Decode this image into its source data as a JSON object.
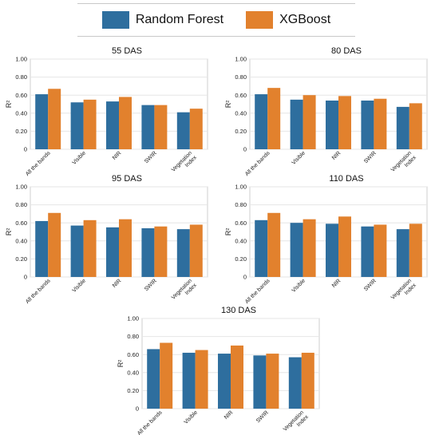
{
  "legend": {
    "items": [
      {
        "label": "Random Forest",
        "color": "#2e6e9e"
      },
      {
        "label": "XGBoost",
        "color": "#e2812d"
      }
    ]
  },
  "chart_data": [
    {
      "type": "bar",
      "title": "55 DAS",
      "ylabel": "R²",
      "ylim": [
        0,
        1.0
      ],
      "yticks": [
        "0",
        "0.20",
        "0.40",
        "0.60",
        "0.80",
        "1.00"
      ],
      "categories": [
        "All the bands",
        "Visible",
        "NIR",
        "SWIR",
        "Vegetation\nIndex"
      ],
      "series": [
        {
          "name": "Random Forest",
          "values": [
            0.61,
            0.52,
            0.53,
            0.49,
            0.41
          ]
        },
        {
          "name": "XGBoost",
          "values": [
            0.67,
            0.55,
            0.58,
            0.49,
            0.45
          ]
        }
      ]
    },
    {
      "type": "bar",
      "title": "80 DAS",
      "ylabel": "R²",
      "ylim": [
        0,
        1.0
      ],
      "yticks": [
        "0",
        "0.20",
        "0.40",
        "0.60",
        "0.80",
        "1.00"
      ],
      "categories": [
        "All the bands",
        "Visible",
        "NIR",
        "SWIR",
        "Vegetation\nIndex"
      ],
      "series": [
        {
          "name": "Random Forest",
          "values": [
            0.61,
            0.55,
            0.54,
            0.54,
            0.47
          ]
        },
        {
          "name": "XGBoost",
          "values": [
            0.68,
            0.6,
            0.59,
            0.56,
            0.51
          ]
        }
      ]
    },
    {
      "type": "bar",
      "title": "95 DAS",
      "ylabel": "R²",
      "ylim": [
        0,
        1.0
      ],
      "yticks": [
        "0",
        "0.20",
        "0.40",
        "0.60",
        "0.80",
        "1.00"
      ],
      "categories": [
        "All the bands",
        "Visible",
        "NIR",
        "SWIR",
        "Vegetation\nIndex"
      ],
      "series": [
        {
          "name": "Random Forest",
          "values": [
            0.62,
            0.57,
            0.55,
            0.54,
            0.53
          ]
        },
        {
          "name": "XGBoost",
          "values": [
            0.71,
            0.63,
            0.64,
            0.56,
            0.58
          ]
        }
      ]
    },
    {
      "type": "bar",
      "title": "110 DAS",
      "ylabel": "R²",
      "ylim": [
        0,
        1.0
      ],
      "yticks": [
        "0",
        "0.20",
        "0.40",
        "0.60",
        "0.80",
        "1.00"
      ],
      "categories": [
        "All the bands",
        "Visible",
        "NIR",
        "SWIR",
        "Vegetation\nIndex"
      ],
      "series": [
        {
          "name": "Random Forest",
          "values": [
            0.63,
            0.6,
            0.59,
            0.56,
            0.53
          ]
        },
        {
          "name": "XGBoost",
          "values": [
            0.71,
            0.64,
            0.67,
            0.58,
            0.59
          ]
        }
      ]
    },
    {
      "type": "bar",
      "title": "130 DAS",
      "ylabel": "R²",
      "ylim": [
        0,
        1.0
      ],
      "yticks": [
        "0",
        "0.20",
        "0.40",
        "0.60",
        "0.80",
        "1.00"
      ],
      "categories": [
        "All the bands",
        "Visible",
        "NIR",
        "SWIR",
        "Vegetation\nIndex"
      ],
      "series": [
        {
          "name": "Random Forest",
          "values": [
            0.66,
            0.62,
            0.61,
            0.59,
            0.57
          ]
        },
        {
          "name": "XGBoost",
          "values": [
            0.73,
            0.65,
            0.7,
            0.61,
            0.62
          ]
        }
      ]
    }
  ]
}
